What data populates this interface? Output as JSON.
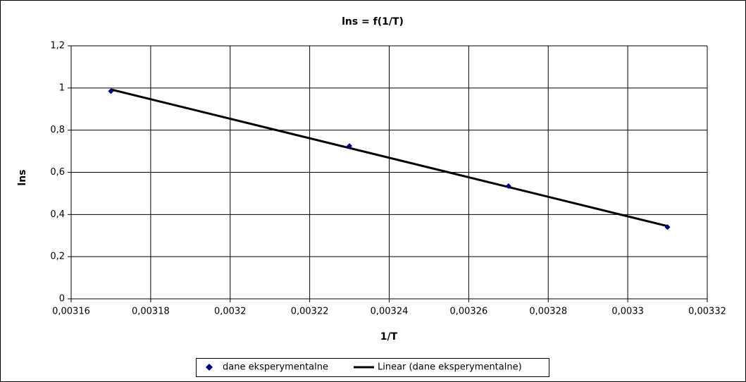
{
  "chart_data": {
    "type": "scatter",
    "title": "lns = f(1/T)",
    "xlabel": "1/T",
    "ylabel": "lns",
    "series": [
      {
        "name": "dane eksperymentalne",
        "color": "#000080",
        "x": [
          0.00317,
          0.00323,
          0.00327,
          0.00331
        ],
        "values": [
          0.985,
          0.725,
          0.535,
          0.34
        ]
      },
      {
        "name": "Linear (dane eksperymentalne)",
        "color": "#000000",
        "x": [
          0.00317,
          0.00331
        ],
        "values": [
          0.993,
          0.345
        ]
      }
    ],
    "xlim": [
      0.00316,
      0.00332
    ],
    "xticks": [
      {
        "value": 0.00316,
        "label": "0,00316"
      },
      {
        "value": 0.00318,
        "label": "0,00318"
      },
      {
        "value": 0.0032,
        "label": "0,0032"
      },
      {
        "value": 0.00322,
        "label": "0,00322"
      },
      {
        "value": 0.00324,
        "label": "0,00324"
      },
      {
        "value": 0.00326,
        "label": "0,00326"
      },
      {
        "value": 0.00328,
        "label": "0,00328"
      },
      {
        "value": 0.0033,
        "label": "0,0033"
      },
      {
        "value": 0.00332,
        "label": "0,00332"
      }
    ],
    "ylim": [
      0,
      1.2
    ],
    "yticks": [
      0,
      {
        "value": 0.2,
        "label": "0,2"
      },
      {
        "value": 0.4,
        "label": "0,4"
      },
      {
        "value": 0.6,
        "label": "0,6"
      },
      {
        "value": 0.8,
        "label": "0,8"
      },
      1,
      {
        "value": 1.2,
        "label": "1,2"
      }
    ],
    "grid": true,
    "legend": "bottom"
  }
}
